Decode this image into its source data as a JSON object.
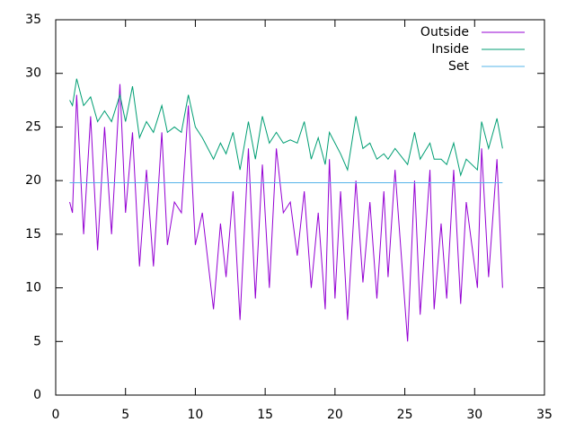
{
  "chart_data": {
    "type": "line",
    "x": [
      1,
      1.2,
      1.5,
      2,
      2.5,
      3,
      3.5,
      4,
      4.6,
      5,
      5.5,
      6,
      6.5,
      7,
      7.6,
      8,
      8.5,
      9,
      9.5,
      10,
      10.5,
      11.3,
      11.8,
      12.2,
      12.7,
      13.2,
      13.8,
      14.3,
      14.8,
      15.3,
      15.8,
      16.3,
      16.8,
      17.3,
      17.8,
      18.3,
      18.8,
      19.3,
      19.6,
      20,
      20.4,
      20.9,
      21.5,
      22,
      22.5,
      23,
      23.5,
      23.8,
      24.3,
      25.2,
      25.7,
      26.1,
      26.8,
      27.1,
      27.6,
      28,
      28.5,
      29,
      29.4,
      30.2,
      30.5,
      31,
      31.6,
      32
    ],
    "series": [
      {
        "name": "Outside",
        "color": "#9400d3",
        "values": [
          18,
          17,
          28,
          15,
          26,
          13.5,
          25,
          15,
          29,
          17,
          24.5,
          12,
          21,
          12,
          24.5,
          14,
          18,
          17,
          27,
          14,
          17,
          8,
          16,
          11,
          19,
          7,
          23,
          9,
          21.5,
          10,
          23,
          17,
          18,
          13,
          19,
          10,
          17,
          8,
          22,
          9,
          19,
          7,
          20,
          10.5,
          18,
          9,
          19,
          11,
          21,
          5,
          20,
          7.5,
          21,
          8,
          16,
          9,
          21,
          8.5,
          18,
          10,
          23,
          11,
          22,
          10
        ]
      },
      {
        "name": "Inside",
        "color": "#009e73",
        "values": [
          27.5,
          27,
          29.5,
          27,
          27.8,
          25.5,
          26.5,
          25.5,
          28,
          25.5,
          28.8,
          24,
          25.5,
          24.5,
          27,
          24.5,
          25,
          24.5,
          28,
          25,
          24,
          22,
          23.5,
          22.5,
          24.5,
          21,
          25.5,
          22,
          26,
          23.5,
          24.5,
          23.5,
          23.8,
          23.5,
          25.5,
          22,
          24,
          21.5,
          24.5,
          23.5,
          22.5,
          21,
          26,
          23,
          23.5,
          22,
          22.5,
          22,
          23,
          21.5,
          24.5,
          22,
          23.5,
          22,
          22,
          21.5,
          23.5,
          20.5,
          22,
          21,
          25.5,
          23,
          25.8,
          23
        ]
      },
      {
        "name": "Set",
        "color": "#56b4e9",
        "values": [
          19.8,
          19.8,
          19.8,
          19.8,
          19.8,
          19.8,
          19.8,
          19.8,
          19.8,
          19.8,
          19.8,
          19.8,
          19.8,
          19.8,
          19.8,
          19.8,
          19.8,
          19.8,
          19.8,
          19.8,
          19.8,
          19.8,
          19.8,
          19.8,
          19.8,
          19.8,
          19.8,
          19.8,
          19.8,
          19.8,
          19.8,
          19.8,
          19.8,
          19.8,
          19.8,
          19.8,
          19.8,
          19.8,
          19.8,
          19.8,
          19.8,
          19.8,
          19.8,
          19.8,
          19.8,
          19.8,
          19.8,
          19.8,
          19.8,
          19.8,
          19.8,
          19.8,
          19.8,
          19.8,
          19.8,
          19.8,
          19.8,
          19.8,
          19.8,
          19.8,
          19.8,
          19.8,
          19.8,
          19.8
        ]
      }
    ],
    "xlim": [
      0,
      35
    ],
    "xticks": [
      0,
      5,
      10,
      15,
      20,
      25,
      30,
      35
    ],
    "ylim": [
      0,
      35
    ],
    "yticks": [
      0,
      5,
      10,
      15,
      20,
      25,
      30,
      35
    ],
    "legend": "top-right"
  }
}
